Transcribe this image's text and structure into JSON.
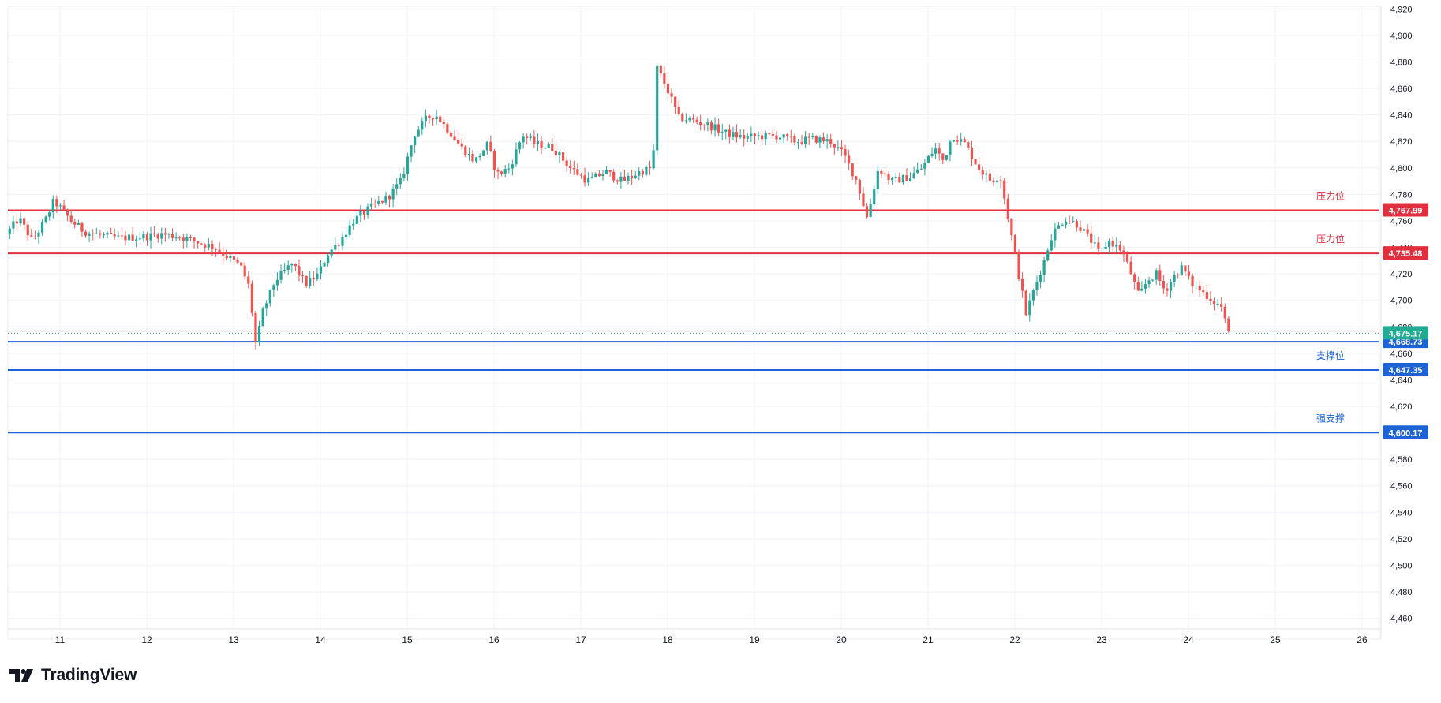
{
  "brand": {
    "name": "TradingView"
  },
  "chart_data": {
    "type": "candlestick",
    "colors": {
      "up": "#26a69a",
      "down": "#ef5350",
      "resistance": "#e0303e",
      "support": "#1e63d6",
      "current": "#22ab94"
    },
    "ylim": [
      4452,
      4922
    ],
    "y_ticks": [
      4460,
      4480,
      4500,
      4520,
      4540,
      4560,
      4580,
      4600,
      4620,
      4640,
      4660,
      4680,
      4700,
      4720,
      4740,
      4760,
      4780,
      4800,
      4820,
      4840,
      4860,
      4880,
      4900,
      4920
    ],
    "xlim": [
      10.4,
      26.2
    ],
    "x_ticks": [
      "11",
      "12",
      "13",
      "14",
      "15",
      "16",
      "17",
      "18",
      "19",
      "20",
      "21",
      "22",
      "23",
      "24",
      "25",
      "26"
    ],
    "grid": true,
    "levels": [
      {
        "price": 4767.99,
        "label": "4,767.99",
        "annotation": "压力位",
        "kind": "resistance"
      },
      {
        "price": 4735.48,
        "label": "4,735.48",
        "annotation": "压力位",
        "kind": "resistance"
      },
      {
        "price": 4668.73,
        "label": "4,668.73",
        "annotation": "",
        "kind": "support"
      },
      {
        "price": 4647.35,
        "label": "4,647.35",
        "annotation": "支撑位",
        "kind": "support"
      },
      {
        "price": 4600.17,
        "label": "4,600.17",
        "annotation": "强支撑",
        "kind": "support"
      }
    ],
    "current_price": {
      "price": 4675.17,
      "label": "4,675.17"
    },
    "price_path": [
      [
        10.4,
        4750
      ],
      [
        10.55,
        4762
      ],
      [
        10.7,
        4745
      ],
      [
        10.85,
        4760
      ],
      [
        10.95,
        4775
      ],
      [
        11.05,
        4768
      ],
      [
        11.15,
        4760
      ],
      [
        11.3,
        4752
      ],
      [
        11.5,
        4749
      ],
      [
        11.7,
        4747
      ],
      [
        12.0,
        4748
      ],
      [
        12.2,
        4750
      ],
      [
        12.4,
        4748
      ],
      [
        12.6,
        4744
      ],
      [
        12.8,
        4740
      ],
      [
        12.95,
        4733
      ],
      [
        13.1,
        4726
      ],
      [
        13.2,
        4710
      ],
      [
        13.28,
        4665
      ],
      [
        13.35,
        4690
      ],
      [
        13.5,
        4715
      ],
      [
        13.7,
        4728
      ],
      [
        13.85,
        4712
      ],
      [
        14.0,
        4720
      ],
      [
        14.1,
        4735
      ],
      [
        14.25,
        4745
      ],
      [
        14.4,
        4760
      ],
      [
        14.6,
        4770
      ],
      [
        14.8,
        4778
      ],
      [
        14.95,
        4790
      ],
      [
        15.1,
        4825
      ],
      [
        15.25,
        4838
      ],
      [
        15.35,
        4840
      ],
      [
        15.5,
        4828
      ],
      [
        15.65,
        4815
      ],
      [
        15.8,
        4805
      ],
      [
        15.95,
        4818
      ],
      [
        16.05,
        4795
      ],
      [
        16.2,
        4800
      ],
      [
        16.35,
        4825
      ],
      [
        16.5,
        4818
      ],
      [
        16.7,
        4815
      ],
      [
        16.9,
        4800
      ],
      [
        17.1,
        4790
      ],
      [
        17.3,
        4797
      ],
      [
        17.5,
        4790
      ],
      [
        17.7,
        4797
      ],
      [
        17.85,
        4800
      ],
      [
        17.9,
        4875
      ],
      [
        18.0,
        4862
      ],
      [
        18.15,
        4838
      ],
      [
        18.3,
        4836
      ],
      [
        18.5,
        4832
      ],
      [
        18.7,
        4826
      ],
      [
        18.9,
        4823
      ],
      [
        19.1,
        4824
      ],
      [
        19.3,
        4824
      ],
      [
        19.5,
        4820
      ],
      [
        19.7,
        4822
      ],
      [
        19.9,
        4820
      ],
      [
        20.05,
        4810
      ],
      [
        20.2,
        4790
      ],
      [
        20.32,
        4762
      ],
      [
        20.45,
        4800
      ],
      [
        20.6,
        4790
      ],
      [
        20.8,
        4793
      ],
      [
        20.95,
        4800
      ],
      [
        21.1,
        4815
      ],
      [
        21.2,
        4805
      ],
      [
        21.3,
        4825
      ],
      [
        21.45,
        4818
      ],
      [
        21.6,
        4800
      ],
      [
        21.75,
        4790
      ],
      [
        21.85,
        4795
      ],
      [
        21.95,
        4760
      ],
      [
        22.05,
        4725
      ],
      [
        22.15,
        4690
      ],
      [
        22.25,
        4710
      ],
      [
        22.35,
        4728
      ],
      [
        22.45,
        4750
      ],
      [
        22.6,
        4762
      ],
      [
        22.75,
        4757
      ],
      [
        22.9,
        4745
      ],
      [
        23.0,
        4735
      ],
      [
        23.1,
        4745
      ],
      [
        23.25,
        4738
      ],
      [
        23.35,
        4722
      ],
      [
        23.45,
        4703
      ],
      [
        23.55,
        4715
      ],
      [
        23.65,
        4720
      ],
      [
        23.75,
        4707
      ],
      [
        23.85,
        4718
      ],
      [
        23.95,
        4725
      ],
      [
        24.05,
        4713
      ],
      [
        24.15,
        4708
      ],
      [
        24.3,
        4700
      ],
      [
        24.4,
        4695
      ],
      [
        24.48,
        4675.17
      ]
    ]
  }
}
